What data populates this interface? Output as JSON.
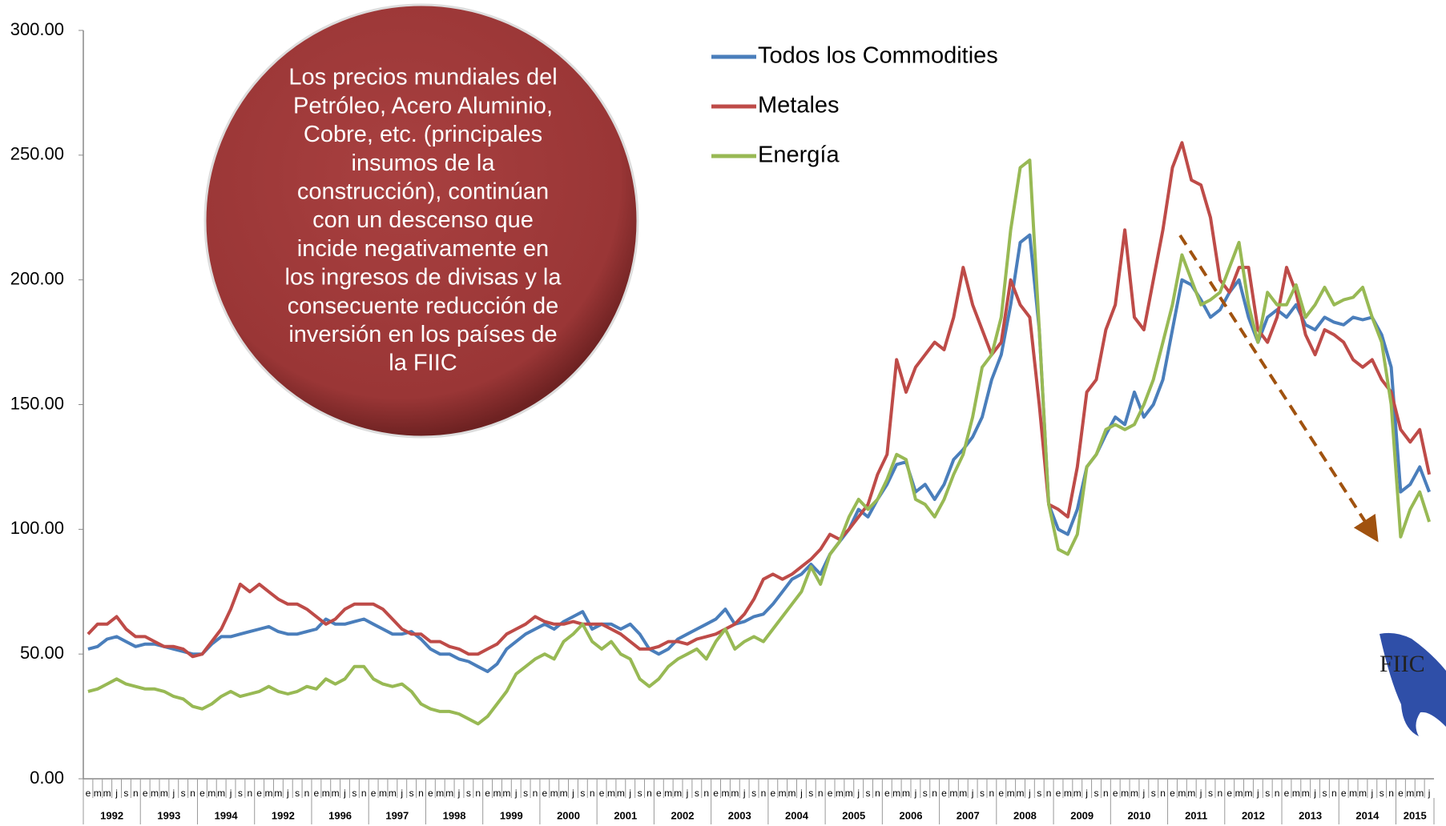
{
  "chart_data": {
    "type": "line",
    "annotation_lines": [
      "Los precios mundiales del",
      "Petróleo, Acero Aluminio,",
      "Cobre, etc.  (principales",
      "insumos de la",
      "construcción),  continúan",
      "con un descenso que",
      "incide negativamente en",
      "los ingresos de divisas y la",
      "consecuente reducción de",
      "inversión en los países de",
      "la FIIC"
    ],
    "logo": "FIIC",
    "years": [
      "1992",
      "1993",
      "1994",
      "1992",
      "1996",
      "1997",
      "1998",
      "1999",
      "2000",
      "2001",
      "2002",
      "2003",
      "2004",
      "2005",
      "2006",
      "2007",
      "2008",
      "2009",
      "2010",
      "2011",
      "2012",
      "2013",
      "2014",
      "2015"
    ],
    "categories": [
      "e",
      "m",
      "m",
      "j",
      "s",
      "n",
      "e",
      "m",
      "m",
      "j",
      "s",
      "n",
      "e",
      "m",
      "m",
      "j",
      "s",
      "n",
      "e",
      "m",
      "m",
      "j",
      "s",
      "n",
      "e",
      "m",
      "m",
      "j",
      "s",
      "n",
      "e",
      "m",
      "m",
      "j",
      "s",
      "n",
      "e",
      "m",
      "m",
      "j",
      "s",
      "n",
      "e",
      "m",
      "m",
      "j",
      "s",
      "n",
      "e",
      "m",
      "m",
      "j",
      "s",
      "n",
      "e",
      "m",
      "m",
      "j",
      "s",
      "n",
      "e",
      "m",
      "m",
      "j",
      "s",
      "n",
      "e",
      "m",
      "m",
      "j",
      "s",
      "n",
      "e",
      "m",
      "m",
      "j",
      "s",
      "n",
      "e",
      "m",
      "m",
      "j",
      "s",
      "n",
      "e",
      "m",
      "m",
      "j",
      "s",
      "n",
      "e",
      "m",
      "m",
      "j",
      "s",
      "n",
      "e",
      "m",
      "m",
      "j",
      "s",
      "n",
      "e",
      "m",
      "m",
      "j",
      "s",
      "n",
      "e",
      "m",
      "m",
      "j",
      "s",
      "n",
      "e",
      "m",
      "m",
      "j",
      "s",
      "n",
      "e",
      "m",
      "m",
      "j",
      "s",
      "n",
      "e",
      "m",
      "m",
      "j",
      "s",
      "n",
      "e",
      "m",
      "m",
      "j",
      "s",
      "n",
      "e",
      "m",
      "m",
      "j"
    ],
    "series": [
      {
        "name": "Todos los Commodities",
        "color": "#4a7ebb",
        "values": [
          52,
          53,
          56,
          57,
          55,
          53,
          54,
          54,
          53,
          52,
          51,
          50,
          50,
          54,
          57,
          57,
          58,
          59,
          60,
          61,
          59,
          58,
          58,
          59,
          60,
          64,
          62,
          62,
          63,
          64,
          62,
          60,
          58,
          58,
          59,
          56,
          52,
          50,
          50,
          48,
          47,
          45,
          43,
          46,
          52,
          55,
          58,
          60,
          62,
          60,
          63,
          65,
          67,
          60,
          62,
          62,
          60,
          62,
          58,
          52,
          50,
          52,
          56,
          58,
          60,
          62,
          64,
          68,
          62,
          63,
          65,
          66,
          70,
          75,
          80,
          82,
          86,
          82,
          90,
          95,
          100,
          108,
          105,
          112,
          118,
          126,
          127,
          115,
          118,
          112,
          118,
          128,
          132,
          137,
          145,
          160,
          170,
          190,
          215,
          218,
          180,
          110,
          100,
          98,
          108,
          125,
          130,
          138,
          145,
          142,
          155,
          145,
          150,
          160,
          180,
          200,
          198,
          192,
          185,
          188,
          195,
          200,
          185,
          175,
          185,
          188,
          185,
          190,
          182,
          180,
          185,
          183,
          182,
          185,
          184,
          185,
          178,
          165,
          115,
          118,
          125,
          115
        ]
      },
      {
        "name": "Metales",
        "color": "#be4b48",
        "values": [
          58,
          62,
          62,
          65,
          60,
          57,
          57,
          55,
          53,
          53,
          52,
          49,
          50,
          55,
          60,
          68,
          78,
          75,
          78,
          75,
          72,
          70,
          70,
          68,
          65,
          62,
          64,
          68,
          70,
          70,
          70,
          68,
          64,
          60,
          58,
          58,
          55,
          55,
          53,
          52,
          50,
          50,
          52,
          54,
          58,
          60,
          62,
          65,
          63,
          62,
          62,
          63,
          62,
          62,
          62,
          60,
          58,
          55,
          52,
          52,
          53,
          55,
          55,
          54,
          56,
          57,
          58,
          60,
          62,
          66,
          72,
          80,
          82,
          80,
          82,
          85,
          88,
          92,
          98,
          96,
          100,
          105,
          110,
          122,
          130,
          168,
          155,
          165,
          170,
          175,
          172,
          185,
          205,
          190,
          180,
          170,
          175,
          200,
          190,
          185,
          150,
          110,
          108,
          105,
          125,
          155,
          160,
          180,
          190,
          220,
          185,
          180,
          200,
          220,
          245,
          255,
          240,
          238,
          225,
          200,
          195,
          205,
          205,
          180,
          175,
          185,
          205,
          195,
          178,
          170,
          180,
          178,
          175,
          168,
          165,
          168,
          160,
          155,
          140,
          135,
          140,
          122
        ]
      },
      {
        "name": "Energía",
        "color": "#98b954",
        "values": [
          35,
          36,
          38,
          40,
          38,
          37,
          36,
          36,
          35,
          33,
          32,
          29,
          28,
          30,
          33,
          35,
          33,
          34,
          35,
          37,
          35,
          34,
          35,
          37,
          36,
          40,
          38,
          40,
          45,
          45,
          40,
          38,
          37,
          38,
          35,
          30,
          28,
          27,
          27,
          26,
          24,
          22,
          25,
          30,
          35,
          42,
          45,
          48,
          50,
          48,
          55,
          58,
          62,
          55,
          52,
          55,
          50,
          48,
          40,
          37,
          40,
          45,
          48,
          50,
          52,
          48,
          55,
          60,
          52,
          55,
          57,
          55,
          60,
          65,
          70,
          75,
          85,
          78,
          90,
          95,
          105,
          112,
          108,
          112,
          120,
          130,
          128,
          112,
          110,
          105,
          112,
          122,
          130,
          145,
          165,
          170,
          185,
          220,
          245,
          248,
          180,
          110,
          92,
          90,
          98,
          125,
          130,
          140,
          142,
          140,
          142,
          150,
          160,
          175,
          190,
          210,
          200,
          190,
          192,
          195,
          205,
          215,
          190,
          175,
          195,
          190,
          190,
          198,
          185,
          190,
          197,
          190,
          192,
          193,
          197,
          185,
          175,
          150,
          97,
          108,
          115,
          103
        ]
      }
    ],
    "ylim": [
      0,
      300
    ],
    "yticks": [
      {
        "value": 0,
        "label": "0.00"
      },
      {
        "value": 50,
        "label": "50.00"
      },
      {
        "value": 100,
        "label": "100.00"
      },
      {
        "value": 150,
        "label": "150.00"
      },
      {
        "value": 200,
        "label": "200.00"
      },
      {
        "value": 250,
        "label": "250.00"
      },
      {
        "value": 300,
        "label": "300.00"
      }
    ]
  }
}
